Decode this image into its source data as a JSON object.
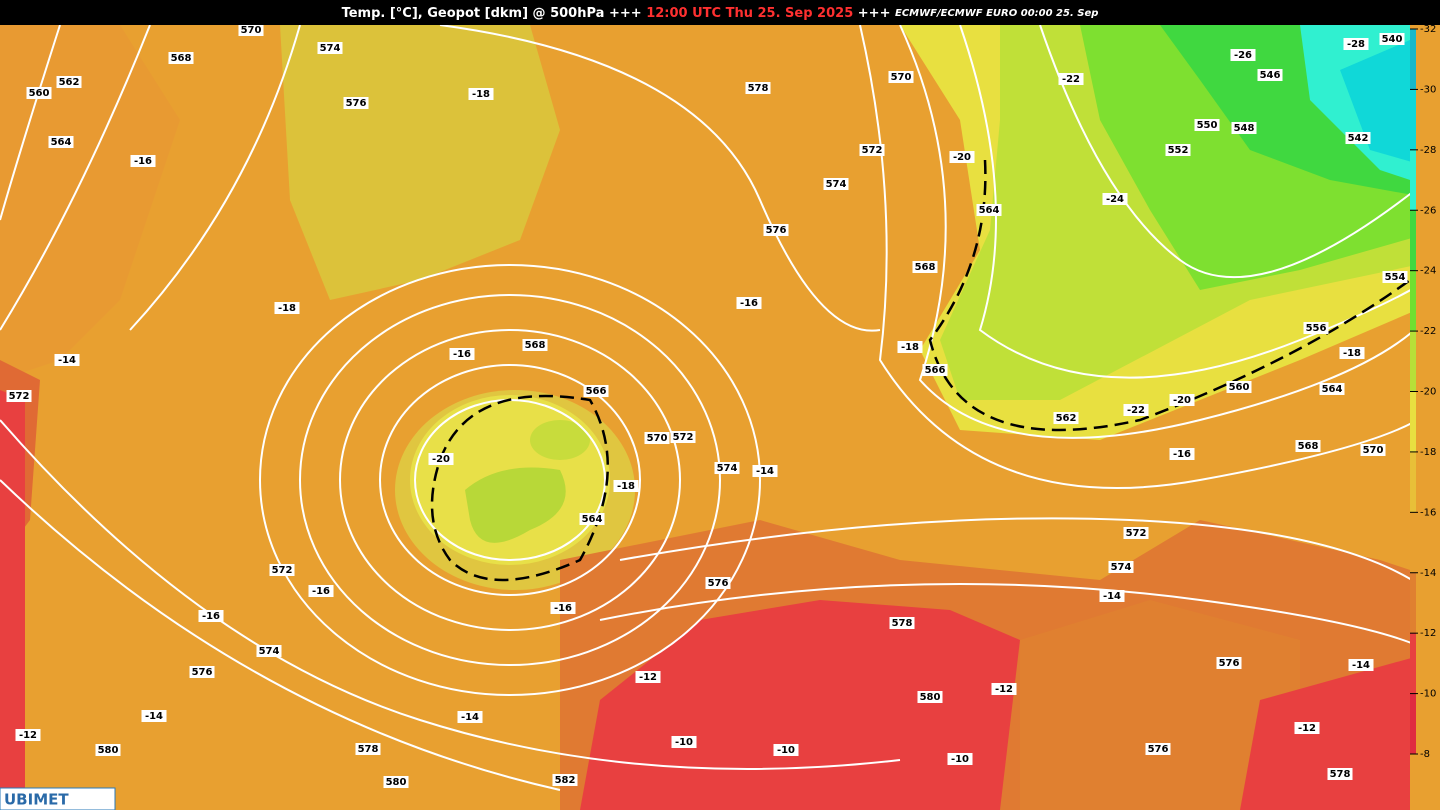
{
  "header": {
    "parameter": "Temp. [°C], Geopot [dkm] @ 500hPa",
    "separator": "+++",
    "valid": "12:00 UTC Thu 25. Sep 2025",
    "model": "ECMWF/ECMWF EURO 00:00 25. Sep"
  },
  "logo": "UBIMET",
  "colorbar": {
    "ticks": [
      -32,
      -30,
      -28,
      -26,
      -24,
      -22,
      -20,
      -18,
      -16,
      -14,
      -12,
      -10,
      -8
    ],
    "colors": [
      "#18b8c8",
      "#10d8d8",
      "#30f0d0",
      "#40d840",
      "#70e030",
      "#b8e038",
      "#e8e040",
      "#e8c038",
      "#e8a030",
      "#e08030",
      "#e84040",
      "#e02c40"
    ]
  },
  "contour_labels": [
    "570",
    "574",
    "568",
    "562",
    "560",
    "576",
    "564",
    "578",
    "570",
    "572",
    "574",
    "576",
    "568",
    "564",
    "568",
    "566",
    "570",
    "572",
    "574",
    "564",
    "572",
    "574",
    "576",
    "580",
    "578",
    "580",
    "582",
    "576",
    "578",
    "580",
    "576",
    "578",
    "576",
    "574",
    "572",
    "570",
    "568",
    "564",
    "560",
    "562",
    "566",
    "556",
    "554",
    "552",
    "550",
    "548",
    "546",
    "542",
    "540",
    "572",
    "-18",
    "-16",
    "-18",
    "-14",
    "-16",
    "-20",
    "-18",
    "-16",
    "-14",
    "-16",
    "-16",
    "-16",
    "-14",
    "-12",
    "-14",
    "-12",
    "-10",
    "-10",
    "-10",
    "-12",
    "-14",
    "-16",
    "-18",
    "-20",
    "-22",
    "-24",
    "-26",
    "-28",
    "-22",
    "-20",
    "-18",
    "-14",
    "-12"
  ]
}
